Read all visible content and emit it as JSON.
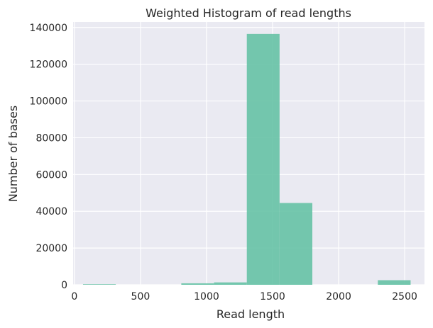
{
  "chart_data": {
    "type": "bar",
    "title": "Weighted Histogram of read lengths",
    "xlabel": "Read length",
    "ylabel": "Number of bases",
    "xlim": [
      -10,
      2650
    ],
    "ylim": [
      0,
      143000
    ],
    "x_ticks": [
      0,
      500,
      1000,
      1500,
      2000,
      2500
    ],
    "x_tick_labels": [
      "0",
      "500",
      "1000",
      "1500",
      "2000",
      "2500"
    ],
    "y_ticks": [
      0,
      20000,
      40000,
      60000,
      80000,
      100000,
      120000,
      140000
    ],
    "y_tick_labels": [
      "0",
      "20000",
      "40000",
      "60000",
      "80000",
      "100000",
      "120000",
      "140000"
    ],
    "bins": [
      {
        "x0": 65,
        "x1": 313,
        "value": 300
      },
      {
        "x0": 313,
        "x1": 561,
        "value": 0
      },
      {
        "x0": 561,
        "x1": 809,
        "value": 0
      },
      {
        "x0": 809,
        "x1": 1057,
        "value": 800
      },
      {
        "x0": 1057,
        "x1": 1305,
        "value": 1300
      },
      {
        "x0": 1305,
        "x1": 1553,
        "value": 136500
      },
      {
        "x0": 1553,
        "x1": 1801,
        "value": 44500
      },
      {
        "x0": 1801,
        "x1": 2049,
        "value": 0
      },
      {
        "x0": 2049,
        "x1": 2297,
        "value": 0
      },
      {
        "x0": 2297,
        "x1": 2545,
        "value": 2500
      }
    ],
    "grid": true,
    "colors": {
      "bar": "#66c2a5",
      "background": "#eaeaf2",
      "grid": "#ffffff",
      "text": "#262626"
    }
  }
}
